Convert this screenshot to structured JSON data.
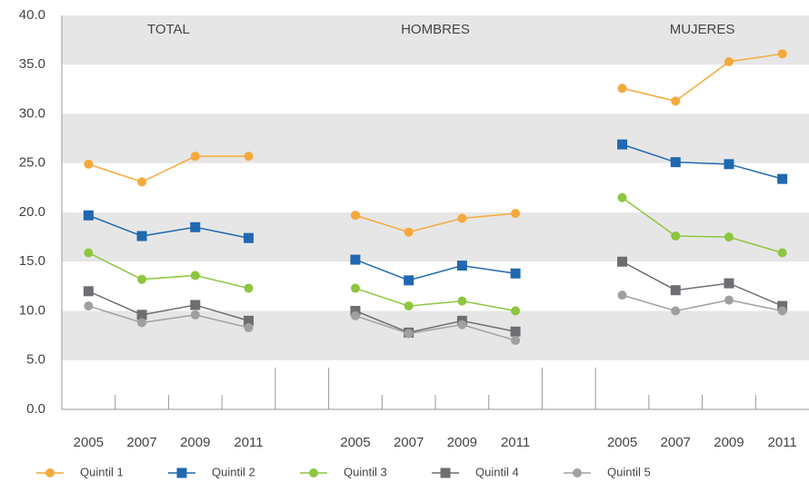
{
  "chart_data": {
    "type": "line",
    "groups": [
      "TOTAL",
      "HOMBRES",
      "MUJERES"
    ],
    "categories": [
      "2005",
      "2007",
      "2009",
      "2011",
      null,
      "2005",
      "2007",
      "2009",
      "2011",
      null,
      "2005",
      "2007",
      "2009",
      "2011"
    ],
    "series": [
      {
        "name": "Quintil 1",
        "color": "#f5a93a",
        "marker": "circle",
        "values": [
          24.9,
          23.1,
          25.7,
          25.7,
          null,
          19.7,
          18.0,
          19.4,
          19.9,
          null,
          32.6,
          31.3,
          35.3,
          36.1
        ]
      },
      {
        "name": "Quintil 2",
        "color": "#2068b0",
        "marker": "square",
        "values": [
          19.7,
          17.6,
          18.5,
          17.4,
          null,
          15.2,
          13.1,
          14.6,
          13.8,
          null,
          26.9,
          25.1,
          24.9,
          23.4
        ]
      },
      {
        "name": "Quintil 3",
        "color": "#8dc63f",
        "marker": "circle",
        "values": [
          15.9,
          13.2,
          13.6,
          12.3,
          null,
          12.3,
          10.5,
          11.0,
          10.0,
          null,
          21.5,
          17.6,
          17.5,
          15.9
        ]
      },
      {
        "name": "Quintil 4",
        "color": "#6d6e71",
        "marker": "square",
        "values": [
          12.0,
          9.6,
          10.6,
          9.0,
          null,
          10.0,
          7.8,
          9.0,
          7.9,
          null,
          15.0,
          12.1,
          12.8,
          10.5
        ]
      },
      {
        "name": "Quintil 5",
        "color": "#a0a0a0",
        "marker": "circle",
        "values": [
          10.5,
          8.8,
          9.6,
          8.3,
          null,
          9.5,
          7.7,
          8.6,
          7.0,
          null,
          11.6,
          10.0,
          11.1,
          10.0
        ]
      }
    ],
    "ylim": [
      0,
      40
    ],
    "yticks": [
      {
        "value": 0,
        "label": "0.0"
      },
      {
        "value": 5,
        "label": "5.0"
      },
      {
        "value": 10,
        "label": "10.0"
      },
      {
        "value": 15,
        "label": "15.0"
      },
      {
        "value": 20,
        "label": "20.0"
      },
      {
        "value": 25,
        "label": "25.0"
      },
      {
        "value": 30,
        "label": "30.0"
      },
      {
        "value": 35,
        "label": "35.0"
      },
      {
        "value": 40,
        "label": "40.0"
      }
    ],
    "banded_grid": true,
    "legend": "bottom"
  }
}
